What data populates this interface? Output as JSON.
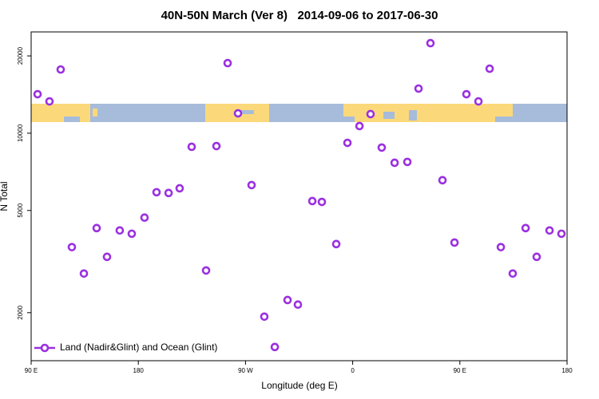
{
  "chart_data": {
    "type": "scatter",
    "title": "40N-50N March (Ver 8)   2014-09-06 to 2017-06-30",
    "x_label": "Longitude (deg E)",
    "y_label": "N Total",
    "log_y": true,
    "legend": "bottom-left",
    "xlim": [
      90,
      540
    ],
    "ylim": [
      1300,
      24800
    ],
    "xticks": [
      {
        "value": 90,
        "label": "90 E"
      },
      {
        "value": 180,
        "label": "180"
      },
      {
        "value": 270,
        "label": "90 W"
      },
      {
        "value": 360,
        "label": "0"
      },
      {
        "value": 450,
        "label": "90 E"
      },
      {
        "value": 540,
        "label": "180"
      }
    ],
    "yticks": [
      2000,
      5000,
      10000,
      20000
    ],
    "series": [
      {
        "name": "Land (Nadir&Glint) and Ocean (Glint)",
        "color": "#9b30e0",
        "x": [
          95.4,
          105.4,
          114.8,
          124.2,
          134.3,
          145,
          153.7,
          164.4,
          174.5,
          185.2,
          195.3,
          205.4,
          214.7,
          224.8,
          236.9,
          245.6,
          255,
          263.7,
          275.1,
          285.8,
          294.6,
          305.3,
          314,
          326.1,
          334.1,
          346.2,
          355.6,
          365.7,
          375,
          384.4,
          395.2,
          405.9,
          415.3,
          425.3,
          435.4,
          445.5,
          455.5,
          465.6,
          475,
          484.4,
          494.4,
          505.2,
          514.5,
          525.3,
          535.3
        ],
        "values": [
          14190,
          13300,
          17700,
          3600,
          2840,
          4270,
          3300,
          4180,
          4060,
          4690,
          5890,
          5850,
          6100,
          8850,
          2920,
          8910,
          18750,
          11950,
          6280,
          1930,
          1470,
          2240,
          2150,
          5440,
          5400,
          3700,
          9170,
          10660,
          11870,
          8790,
          7670,
          7730,
          14920,
          22420,
          6560,
          3750,
          14190,
          13300,
          17830,
          3600,
          2840,
          4270,
          3300,
          4180,
          4060
        ]
      }
    ]
  }
}
